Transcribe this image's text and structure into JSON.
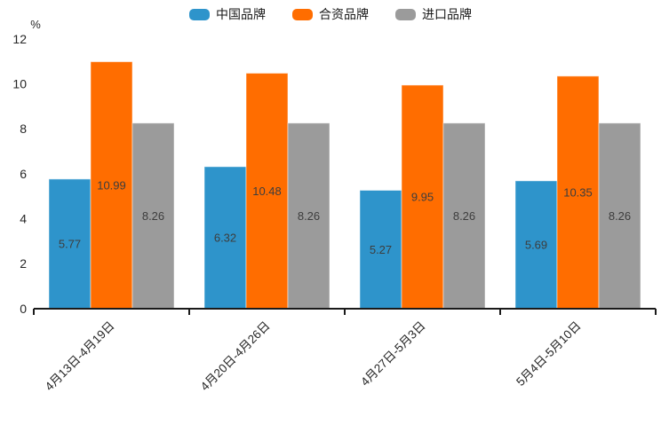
{
  "chart_data": {
    "type": "bar",
    "title": "",
    "xlabel": "",
    "ylabel": "%",
    "categories": [
      "4月13日-4月19日",
      "4月20日-4月26日",
      "4月27日-5月3日",
      "5月4日-5月10日"
    ],
    "series": [
      {
        "name": "中国品牌",
        "color": "#2E94CB",
        "values": [
          5.77,
          6.32,
          5.27,
          5.69
        ]
      },
      {
        "name": "合资品牌",
        "color": "#FF6D00",
        "values": [
          10.99,
          10.48,
          9.95,
          10.35
        ]
      },
      {
        "name": "进口品牌",
        "color": "#9B9B9B",
        "values": [
          8.26,
          8.26,
          8.26,
          8.26
        ]
      }
    ],
    "ylim": [
      0,
      12
    ],
    "yticks": [
      0,
      2,
      4,
      6,
      8,
      10,
      12
    ],
    "grid": false,
    "legend_position": "top-center",
    "value_labels": "centered-inside-bars"
  },
  "colors": {
    "axis_line": "#1a1a1a",
    "tick_text": "#262626",
    "bar_value_text": "#3d3d3d",
    "bar_edge": "rgba(255,255,255,0.5)"
  }
}
